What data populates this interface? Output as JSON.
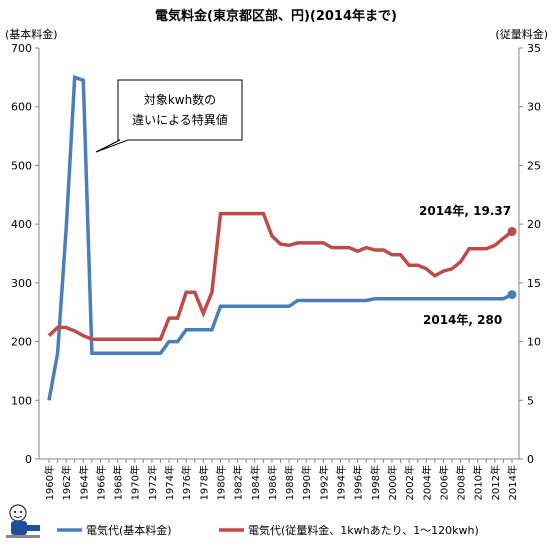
{
  "colors": {
    "blue": "#4a7ebb",
    "red": "#be4b48",
    "axis": "#868686"
  },
  "chart_data": {
    "type": "line",
    "title": "電気料金(東京都区部、円)(2014年まで)",
    "ylabel_left": "(基本料金)",
    "ylabel_right": "(従量料金)",
    "ylim_left": [
      0,
      700
    ],
    "ylim_right": [
      0,
      35
    ],
    "yticks_left": [
      "0",
      "100",
      "200",
      "300",
      "400",
      "500",
      "600",
      "700"
    ],
    "yticks_right": [
      "0",
      "5",
      "10",
      "15",
      "20",
      "25",
      "30",
      "35"
    ],
    "xticks": [
      "1960年",
      "1962年",
      "1964年",
      "1966年",
      "1968年",
      "1970年",
      "1972年",
      "1974年",
      "1976年",
      "1978年",
      "1980年",
      "1982年",
      "1984年",
      "1986年",
      "1988年",
      "1990年",
      "1992年",
      "1994年",
      "1996年",
      "1998年",
      "2000年",
      "2002年",
      "2004年",
      "2006年",
      "2008年",
      "2010年",
      "2012年",
      "2014年"
    ],
    "grid": false,
    "legend_position": "bottom",
    "x": [
      1960,
      1961,
      1962,
      1963,
      1964,
      1965,
      1966,
      1967,
      1968,
      1969,
      1970,
      1971,
      1972,
      1973,
      1974,
      1975,
      1976,
      1977,
      1978,
      1979,
      1980,
      1981,
      1982,
      1983,
      1984,
      1985,
      1986,
      1987,
      1988,
      1989,
      1990,
      1991,
      1992,
      1993,
      1994,
      1995,
      1996,
      1997,
      1998,
      1999,
      2000,
      2001,
      2002,
      2003,
      2004,
      2005,
      2006,
      2007,
      2008,
      2009,
      2010,
      2011,
      2012,
      2013,
      2014
    ],
    "series": [
      {
        "name": "電気代(基本料金)",
        "axis": "left",
        "color": "#4a7ebb",
        "values": [
          100,
          180,
          390,
          650,
          645,
          180,
          180,
          180,
          180,
          180,
          180,
          180,
          180,
          180,
          200,
          200,
          220,
          220,
          220,
          220,
          260,
          260,
          260,
          260,
          260,
          260,
          260,
          260,
          260,
          270,
          270,
          270,
          270,
          270,
          270,
          270,
          270,
          270,
          273,
          273,
          273,
          273,
          273,
          273,
          273,
          273,
          273,
          273,
          273,
          273,
          273,
          273,
          273,
          273,
          280
        ]
      },
      {
        "name": "電気代(従量料金、1kwhあたり、1～120kwh)",
        "axis": "right",
        "color": "#be4b48",
        "values": [
          10.5,
          11.2,
          11.2,
          10.9,
          10.5,
          10.2,
          10.2,
          10.2,
          10.2,
          10.2,
          10.2,
          10.2,
          10.2,
          10.2,
          12.0,
          12.0,
          14.2,
          14.2,
          12.4,
          14.2,
          20.9,
          20.9,
          20.9,
          20.9,
          20.9,
          20.9,
          19.0,
          18.3,
          18.2,
          18.4,
          18.4,
          18.4,
          18.4,
          18.0,
          18.0,
          18.0,
          17.7,
          18.0,
          17.8,
          17.8,
          17.4,
          17.4,
          16.5,
          16.5,
          16.2,
          15.6,
          16.0,
          16.2,
          16.8,
          17.9,
          17.9,
          17.9,
          18.2,
          18.8,
          19.37
        ]
      }
    ],
    "annotations": {
      "callout": [
        "対象kwh数の",
        "違いによる特異値"
      ],
      "end_red": "2014年, 19.37",
      "end_blue": "2014年, 280"
    }
  }
}
